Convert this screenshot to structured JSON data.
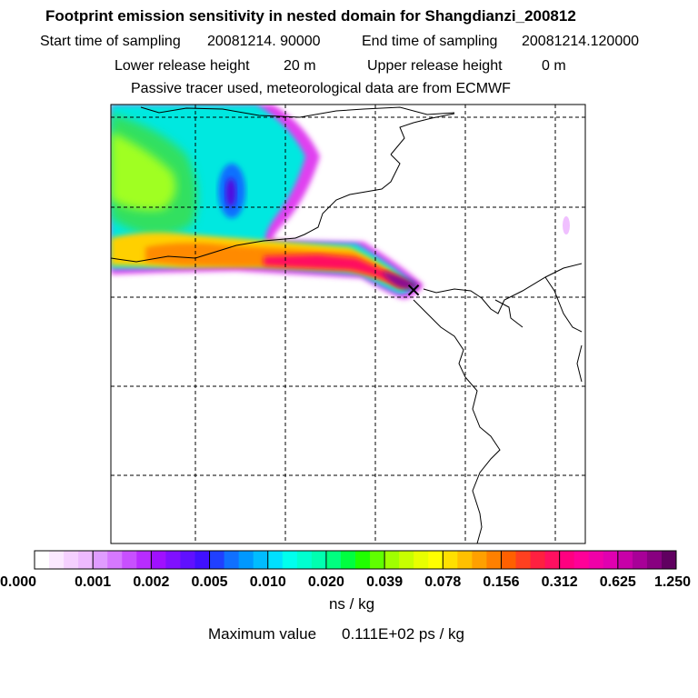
{
  "chart_data": {
    "type": "heatmap",
    "title": "Footprint emission sensitivity in nested domain for Shangdianzi_200812",
    "subtitle_start_label": "Start time of sampling",
    "subtitle_start_value": "20081214. 90000",
    "subtitle_end_label": "End time of sampling",
    "subtitle_end_value": "20081214.120000",
    "lower_release_label": "Lower release height",
    "lower_release_value": "20 m",
    "upper_release_label": "Upper release height",
    "upper_release_value": "0 m",
    "tracer_note": "Passive tracer used, meteorological data are from ECMWF",
    "colorbar_ticks": [
      "0.000",
      "0.001",
      "0.002",
      "0.005",
      "0.010",
      "0.020",
      "0.039",
      "0.078",
      "0.156",
      "0.312",
      "0.625",
      "1.250"
    ],
    "colorbar_colors": [
      [
        "#ffffff",
        "#fbe8ff",
        "#f5d0ff",
        "#eebaff"
      ],
      [
        "#e09cff",
        "#d678ff",
        "#c850ff",
        "#b82cff"
      ],
      [
        "#a010ff",
        "#8010ff",
        "#6010ff",
        "#4010ff"
      ],
      [
        "#2040ff",
        "#1070ff",
        "#0098ff",
        "#00bcff"
      ],
      [
        "#00e0ff",
        "#00ffee",
        "#00ffd0",
        "#00ffb0"
      ],
      [
        "#00ff80",
        "#00ff40",
        "#20ff00",
        "#60ff00"
      ],
      [
        "#a0ff00",
        "#c8ff00",
        "#e8ff00",
        "#ffff00"
      ],
      [
        "#ffe000",
        "#ffc000",
        "#ffa000",
        "#ff8000"
      ],
      [
        "#ff6000",
        "#ff4020",
        "#ff2040",
        "#ff1060"
      ],
      [
        "#ff0080",
        "#ff0098",
        "#f000a8",
        "#e000b0"
      ],
      [
        "#c800a8",
        "#a80098",
        "#880080",
        "#600060"
      ]
    ],
    "unit": "ns / kg",
    "max_label": "Maximum value",
    "max_value": "0.111E+02 ps / kg",
    "receptor_marker": "×"
  }
}
